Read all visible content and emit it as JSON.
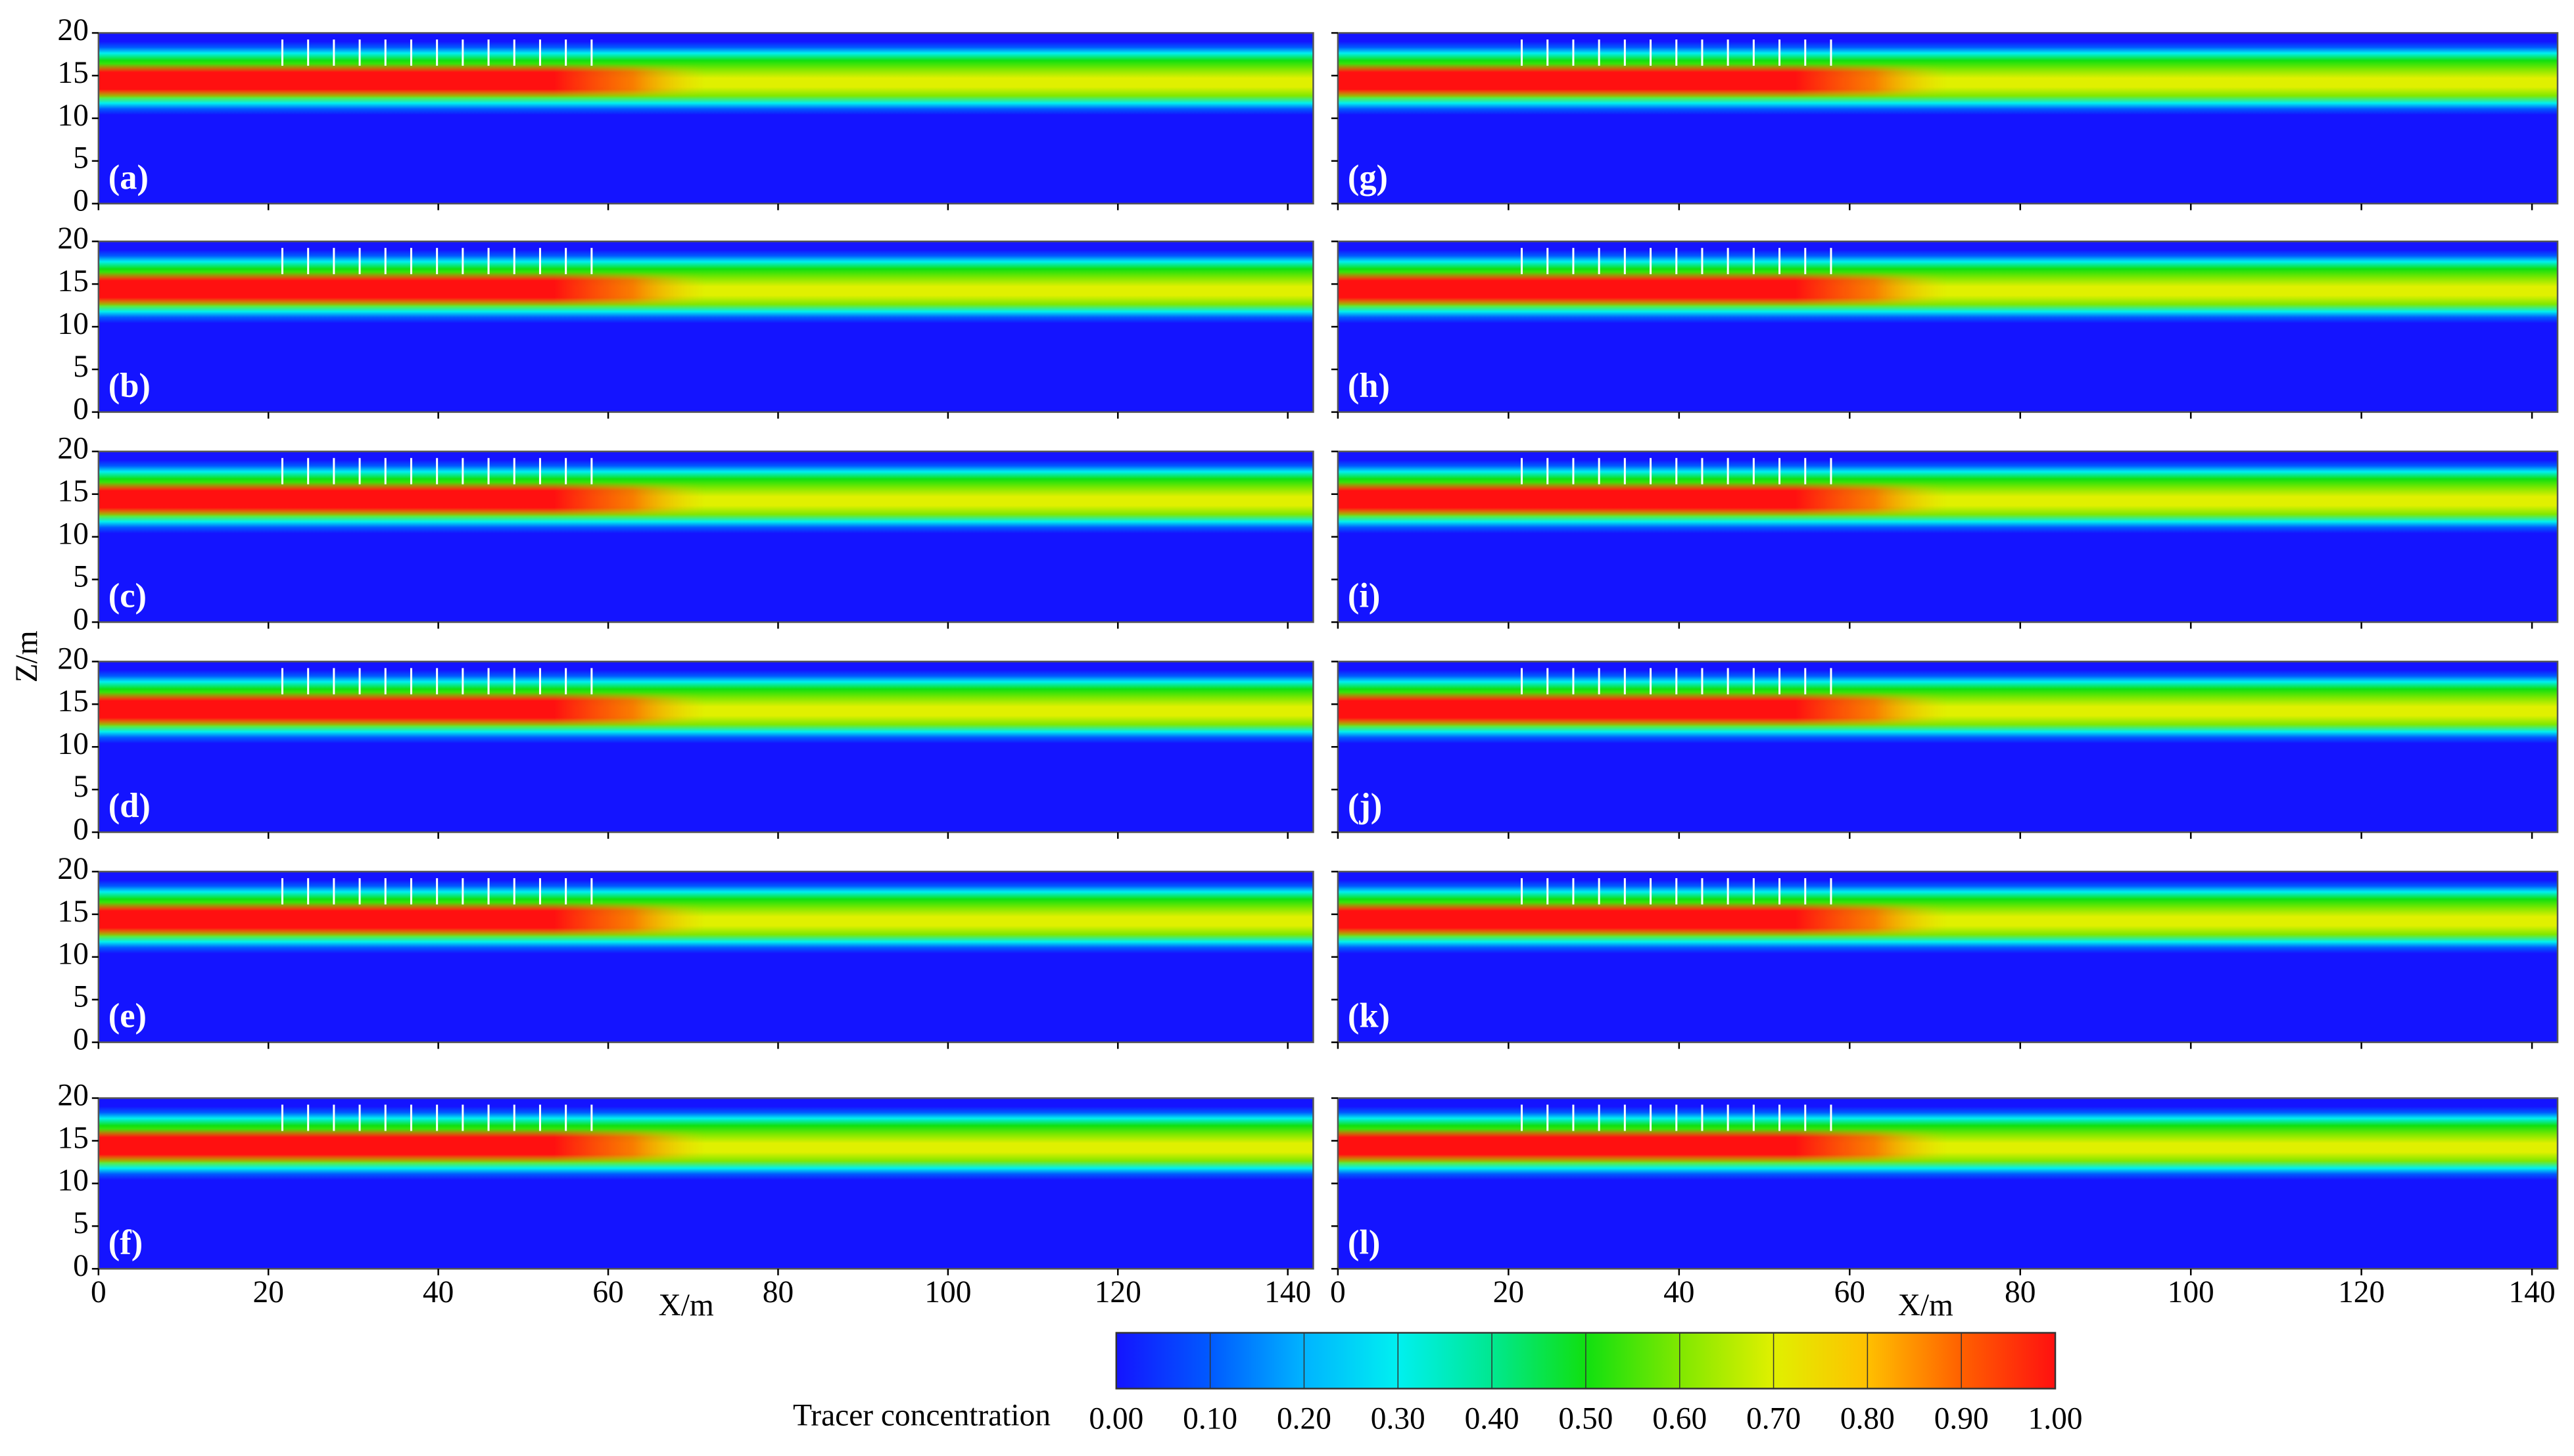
{
  "chart_data": {
    "type": "heatmap",
    "x_label": "X/m",
    "y_label": "Z/m",
    "xlim": [
      0,
      143
    ],
    "ylim": [
      0,
      20
    ],
    "xticks": [
      0,
      20,
      40,
      60,
      80,
      100,
      120,
      140
    ],
    "yticks": [
      0,
      5,
      10,
      15,
      20
    ],
    "panels": [
      "(a)",
      "(b)",
      "(c)",
      "(d)",
      "(e)",
      "(f)",
      "(g)",
      "(h)",
      "(i)",
      "(j)",
      "(k)",
      "(l)"
    ],
    "colorbar": {
      "label": "Tracer concentration",
      "ticks": [
        {
          "value": 0,
          "label": "0.00"
        },
        {
          "value": 0.1,
          "label": "0.10"
        },
        {
          "value": 0.2,
          "label": "0.20"
        },
        {
          "value": 0.3,
          "label": "0.30"
        },
        {
          "value": 0.4,
          "label": "0.40"
        },
        {
          "value": 0.5,
          "label": "0.50"
        },
        {
          "value": 0.6,
          "label": "0.60"
        },
        {
          "value": 0.7,
          "label": "0.70"
        },
        {
          "value": 0.8,
          "label": "0.80"
        },
        {
          "value": 0.9,
          "label": "0.90"
        },
        {
          "value": 1,
          "label": "1.00"
        }
      ],
      "colors": [
        "#1414ff",
        "#005aff",
        "#00b4ff",
        "#00f0f0",
        "#00e890",
        "#10e010",
        "#80e800",
        "#e0f000",
        "#ffc000",
        "#ff6000",
        "#ff1010"
      ]
    }
  }
}
